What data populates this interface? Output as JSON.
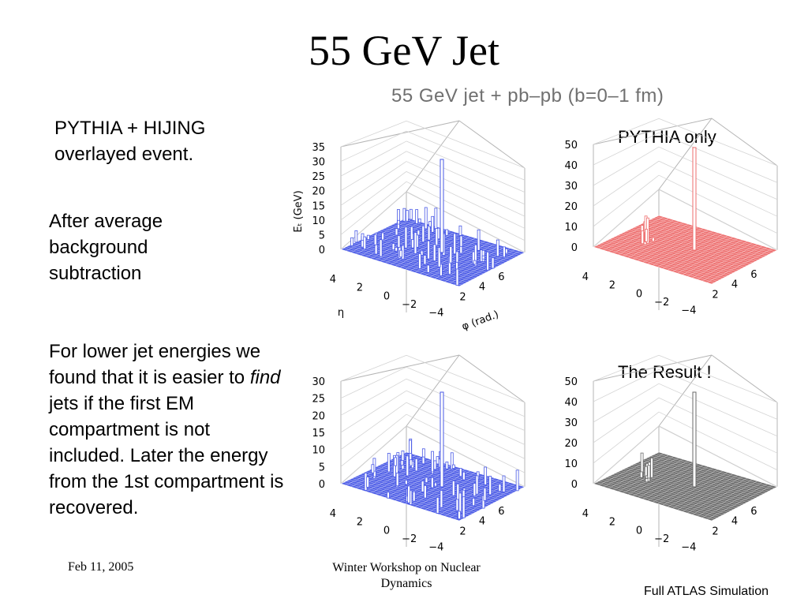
{
  "slide": {
    "title": "55 GeV Jet",
    "subtitle": "55 GeV jet + pb–pb (b=0–1 fm)",
    "text1": "PYTHIA + HIJING overlayed event.",
    "text2": "After average background subtraction",
    "text3_before": "For lower jet energies we found that it is easier to",
    "text3_emph": "find",
    "text3_after": "jets if the first EM compartment is not included.  Later the energy from the 1st compartment is recovered.",
    "label_pythia": "PYTHIA only",
    "label_result": "The Result !",
    "footer_date": "Feb 11, 2005",
    "footer_event": "Winter Workshop on Nuclear Dynamics",
    "footer_sim": "Full ATLAS Simulation"
  },
  "colors": {
    "blue_surface": "#4a5ae6",
    "red_surface": "#ee6e6e",
    "gray_surface": "#6a6a6a",
    "subtitle": "#707070"
  },
  "plots": [
    {
      "id": "overlay",
      "color": "#4a5ae6",
      "z_max": 35,
      "z_ticks": [
        "35",
        "30",
        "25",
        "20",
        "15",
        "10",
        "5",
        "0"
      ],
      "z_axis_label": "Eₜ (GeV)",
      "phi_ticks": [
        "2",
        "4",
        "6"
      ],
      "phi_axis_label": "φ (rad.)",
      "eta_ticks": [
        "4",
        "2",
        "0",
        "−2",
        "−4"
      ],
      "eta_axis_label": "η"
    },
    {
      "id": "pythia-only",
      "color": "#ee6e6e",
      "z_max": 50,
      "z_ticks": [
        "50",
        "40",
        "30",
        "20",
        "10",
        "0"
      ],
      "phi_ticks": [
        "2",
        "4",
        "6"
      ],
      "eta_ticks": [
        "4",
        "2",
        "0",
        "−2",
        "−4"
      ]
    },
    {
      "id": "after-subtraction",
      "color": "#4a5ae6",
      "z_max": 30,
      "z_ticks": [
        "30",
        "25",
        "20",
        "15",
        "10",
        "5",
        "0"
      ],
      "phi_ticks": [
        "2",
        "4",
        "6"
      ],
      "eta_ticks": [
        "4",
        "2",
        "0",
        "−2",
        "−4"
      ]
    },
    {
      "id": "result",
      "color": "#6a6a6a",
      "z_max": 50,
      "z_ticks": [
        "50",
        "40",
        "30",
        "20",
        "10",
        "0"
      ],
      "phi_ticks": [
        "2",
        "4",
        "6"
      ],
      "eta_ticks": [
        "4",
        "2",
        "0",
        "−2",
        "−4"
      ]
    }
  ]
}
